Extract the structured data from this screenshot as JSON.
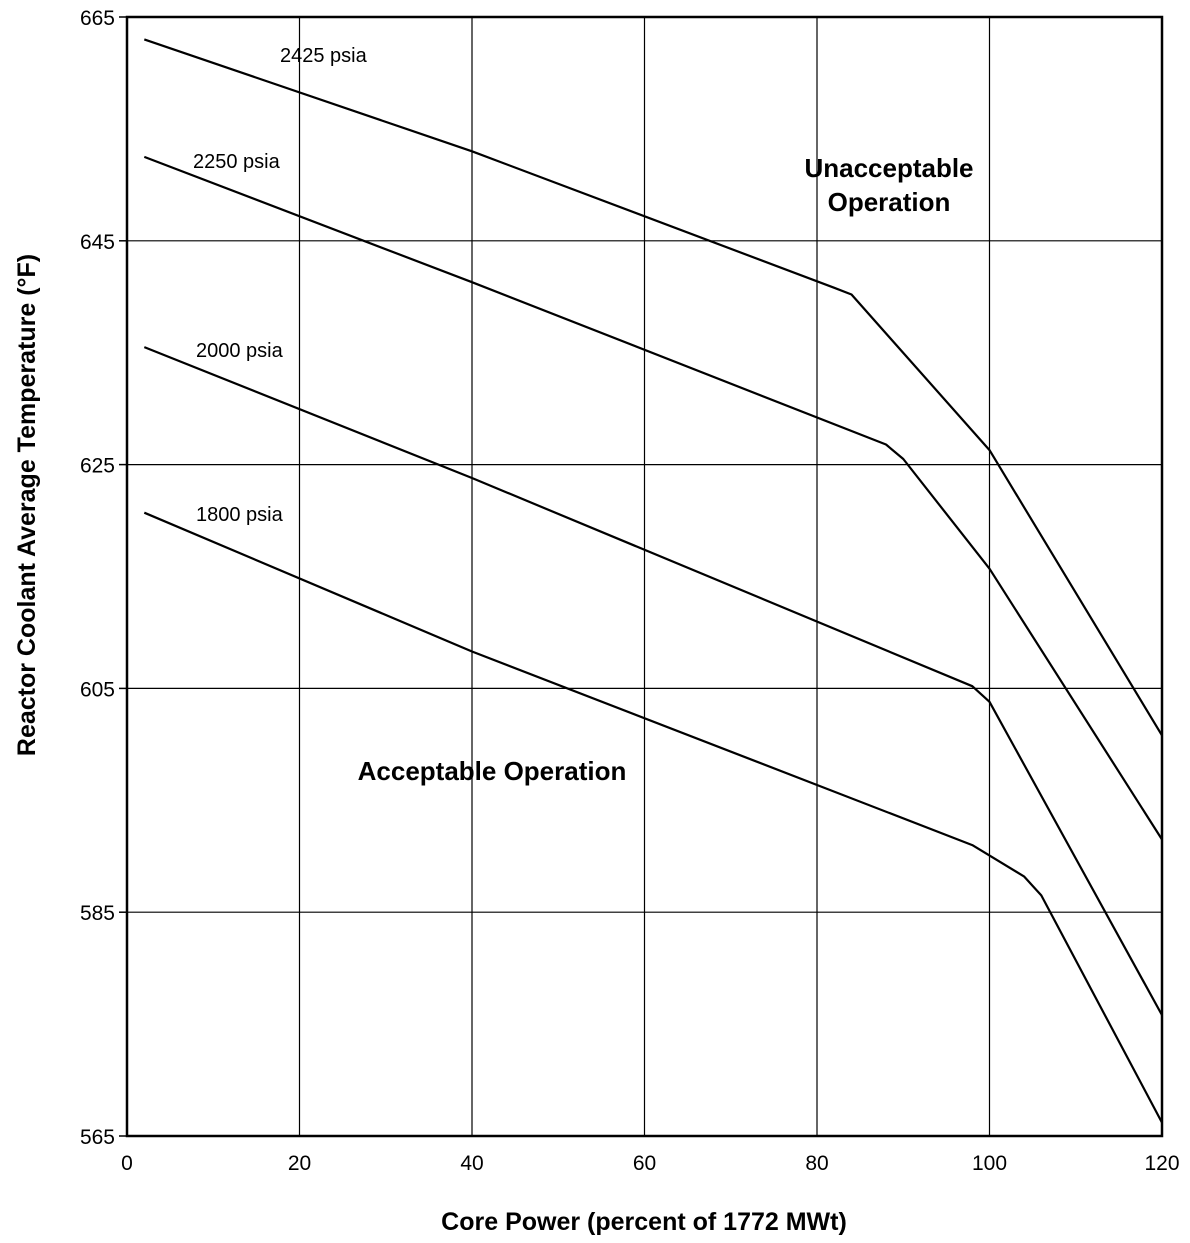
{
  "chart_data": {
    "type": "line",
    "title": "",
    "xlabel": "Core Power (percent of 1772 MWt)",
    "ylabel": "Reactor Coolant Average Temperature (°F)",
    "xlim": [
      0,
      120
    ],
    "ylim": [
      565,
      665
    ],
    "x_ticks": [
      0,
      20,
      40,
      60,
      80,
      100,
      120
    ],
    "y_ticks": [
      565,
      585,
      605,
      625,
      645,
      665
    ],
    "grid": true,
    "series": [
      {
        "name": "2425 psia",
        "points": [
          [
            2,
            663
          ],
          [
            40,
            653
          ],
          [
            82,
            640.8
          ],
          [
            84,
            640.2
          ],
          [
            100,
            626.3
          ],
          [
            120,
            600.8
          ]
        ]
      },
      {
        "name": "2250 psia",
        "points": [
          [
            2,
            652.5
          ],
          [
            40,
            641.3
          ],
          [
            88,
            626.8
          ],
          [
            90,
            625.5
          ],
          [
            100,
            615.7
          ],
          [
            120,
            591.5
          ]
        ]
      },
      {
        "name": "2000 psia",
        "points": [
          [
            2,
            635.5
          ],
          [
            40,
            623.8
          ],
          [
            98,
            605.2
          ],
          [
            100,
            603.8
          ],
          [
            120,
            575.8
          ]
        ]
      },
      {
        "name": "1800 psia",
        "points": [
          [
            2,
            620.7
          ],
          [
            40,
            608.3
          ],
          [
            98,
            591
          ],
          [
            104,
            588.2
          ],
          [
            106,
            586.5
          ],
          [
            120,
            566.2
          ]
        ]
      }
    ],
    "annotations": [
      {
        "text_lines": [
          "Unacceptable",
          "Operation"
        ]
      },
      {
        "text_lines": [
          "Acceptable Operation"
        ]
      }
    ]
  }
}
